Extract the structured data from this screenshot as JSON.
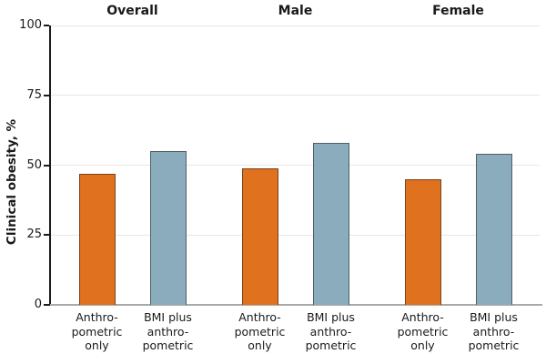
{
  "appearance": {
    "background": "#FFFFFF",
    "grid_color": "#E7E7E7",
    "baseline_color": "#A9A9A9",
    "axis_color": "#1A1A1A",
    "text_color": "#1A1A1A"
  },
  "chart_data": {
    "type": "bar",
    "title": "",
    "xlabel": "",
    "ylabel": "Clinical obesity, %",
    "ylim": [
      0,
      100
    ],
    "yticks": [
      0,
      25,
      50,
      75,
      100
    ],
    "grid": true,
    "legend_position": "none",
    "categories": [
      "Overall",
      "Male",
      "Female"
    ],
    "series": [
      {
        "name": "Anthropometric only",
        "slug": "anthropometric-only",
        "color": "#E0711F",
        "edge_color": "rgba(25,25,25,0.52)",
        "values": [
          47,
          49,
          45
        ],
        "tick_label_lines": [
          "Anthro-",
          "pometric",
          "only"
        ]
      },
      {
        "name": "BMI plus anthropometric",
        "slug": "bmi-plus-anthropometric",
        "color": "#8BACBC",
        "edge_color": "rgba(25,25,25,0.52)",
        "values": [
          55,
          58,
          54
        ],
        "tick_label_lines": [
          "BMI plus",
          "anthro-",
          "pometric"
        ]
      }
    ]
  }
}
